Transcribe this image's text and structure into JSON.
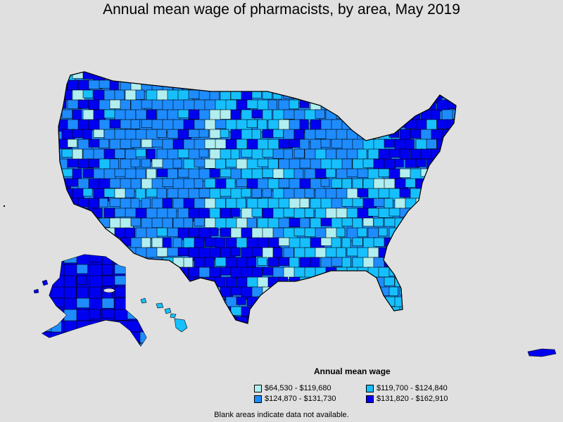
{
  "title": "Annual mean wage of pharmacists, by area, May 2019",
  "legend": {
    "title": "Annual mean wage",
    "items": [
      {
        "label": "$64,530 - $119,680",
        "color": "#b0eef0"
      },
      {
        "label": "$119,700 - $124,840",
        "color": "#16c0ff"
      },
      {
        "label": "$124,870 - $131,730",
        "color": "#1e8cff"
      },
      {
        "label": "$131,820 - $162,910",
        "color": "#0000f0"
      }
    ]
  },
  "footnote": "Blank areas indicate data not available.",
  "colors": {
    "background": "#e0e0e0",
    "border": "#000000",
    "missing": "#ffffff"
  },
  "map": {
    "regions": [
      "contiguous-us",
      "alaska",
      "hawaii",
      "puerto-rico"
    ],
    "dominant_class_by_region": {
      "west-coast": 3,
      "mountain": 2,
      "plains": 1,
      "texas": 3,
      "midwest": 2,
      "south": 1,
      "northeast": 3,
      "alaska": 3,
      "hawaii": 1,
      "puerto-rico": 3
    }
  }
}
